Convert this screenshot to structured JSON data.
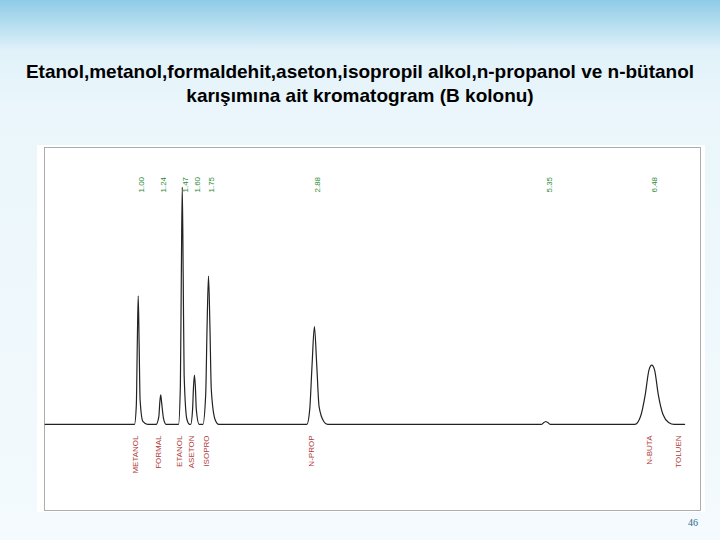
{
  "chart_data": {
    "type": "line",
    "title": "Etanol,metanol,formaldehit,aseton,isopropil alkol,n-propanol ve n-bütanol karışımına ait kromatogram (B kolonu)",
    "x": [
      0,
      0.96,
      0.98,
      0.99,
      1.0,
      1.01,
      1.02,
      1.05,
      1.1,
      1.19,
      1.22,
      1.23,
      1.24,
      1.25,
      1.27,
      1.3,
      1.43,
      1.45,
      1.46,
      1.47,
      1.48,
      1.49,
      1.52,
      1.55,
      1.56,
      1.58,
      1.59,
      1.6,
      1.61,
      1.62,
      1.65,
      1.69,
      1.72,
      1.735,
      1.75,
      1.765,
      1.78,
      1.82,
      1.86,
      2.8,
      2.83,
      2.855,
      2.88,
      2.905,
      2.93,
      2.98,
      3.02,
      5.3,
      5.33,
      5.35,
      5.37,
      5.4,
      6.3,
      6.36,
      6.41,
      6.45,
      6.48,
      6.51,
      6.55,
      6.6,
      6.66,
      6.72,
      6.83
    ],
    "values": [
      0,
      0,
      20,
      80,
      130,
      80,
      25,
      3,
      0,
      0,
      8,
      22,
      30,
      22,
      6,
      0,
      0,
      40,
      150,
      240,
      150,
      50,
      5,
      0,
      0,
      15,
      38,
      50,
      38,
      15,
      0,
      0,
      30,
      100,
      150,
      100,
      35,
      5,
      0,
      0,
      15,
      60,
      99,
      60,
      18,
      3,
      0,
      0,
      2,
      3,
      2,
      0,
      0,
      8,
      30,
      55,
      60,
      55,
      30,
      10,
      2,
      0,
      0
    ],
    "color": "#222222",
    "xlim": [
      0,
      7
    ],
    "ylim": [
      -87,
      280
    ],
    "xticks": [],
    "yticks": [],
    "tick_labels": false,
    "grid": false,
    "peak_labels": [
      {
        "x": 1.0,
        "label": "1.00"
      },
      {
        "x": 1.24,
        "label": "1.24"
      },
      {
        "x": 1.47,
        "label": "1.47"
      },
      {
        "x": 1.6,
        "label": "1.60"
      },
      {
        "x": 1.75,
        "label": "1.75"
      },
      {
        "x": 2.88,
        "label": "2.88"
      },
      {
        "x": 5.35,
        "label": "5.35"
      },
      {
        "x": 6.48,
        "label": "6.48"
      }
    ],
    "peak_names": [
      {
        "x": 1.0,
        "label": "METANOL"
      },
      {
        "x": 1.24,
        "label": "FORMAL"
      },
      {
        "x": 1.47,
        "label": "ETANOL"
      },
      {
        "x": 1.6,
        "label": "ASETON"
      },
      {
        "x": 1.75,
        "label": "ISOPRO"
      },
      {
        "x": 2.88,
        "label": "N-PROP"
      },
      {
        "x": 6.48,
        "label": "N-BUTA"
      },
      {
        "x": 6.79,
        "label": "TOLUEN"
      }
    ]
  },
  "page_number": "46"
}
